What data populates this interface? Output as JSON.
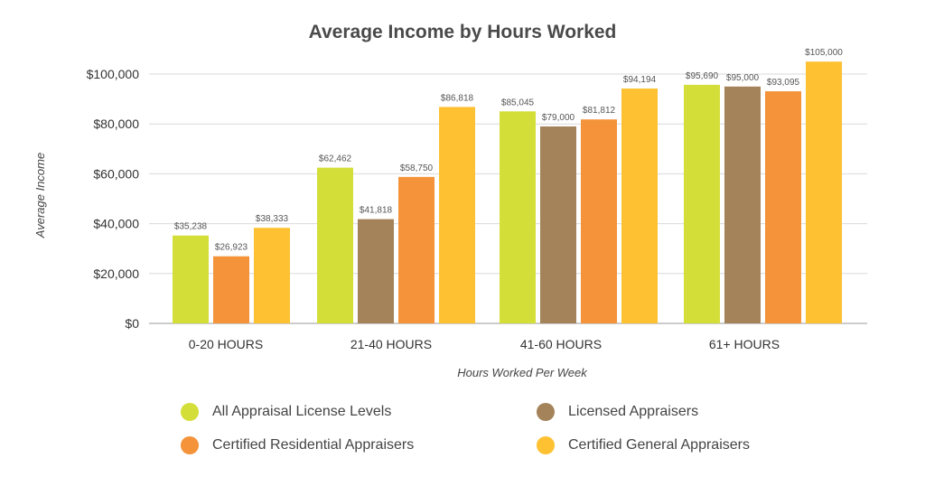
{
  "chart_data": {
    "type": "bar",
    "title": "Average Income by Hours Worked",
    "xlabel": "Hours Worked Per Week",
    "ylabel": "Average Income",
    "ylim": [
      0,
      100000
    ],
    "yticks": [
      0,
      20000,
      40000,
      60000,
      80000,
      100000
    ],
    "ytick_labels": [
      "$0",
      "$20,000",
      "$40,000",
      "$60,000",
      "$80,000",
      "$100,000"
    ],
    "grid": true,
    "legend_position": "bottom",
    "categories": [
      "0-20 HOURS",
      "21-40 HOURS",
      "41-60 HOURS",
      "61+ HOURS"
    ],
    "series": [
      {
        "name": "All Appraisal License Levels",
        "color": "#d4de39",
        "values": [
          35238,
          62462,
          85045,
          95690
        ],
        "labels": [
          "$35,238",
          "$62,462",
          "$85,045",
          "$95,690"
        ]
      },
      {
        "name": "Licensed Appraisers",
        "color": "#a5835a",
        "values": [
          null,
          41818,
          79000,
          95000
        ],
        "labels": [
          null,
          "$41,818",
          "$79,000",
          "$95,000"
        ]
      },
      {
        "name": "Certified Residential Appraisers",
        "color": "#f4933a",
        "values": [
          26923,
          58750,
          81812,
          93095
        ],
        "labels": [
          "$26,923",
          "$58,750",
          "$81,812",
          "$93,095"
        ]
      },
      {
        "name": "Certified General Appraisers",
        "color": "#fdc132",
        "values": [
          38333,
          86818,
          94194,
          105000
        ],
        "labels": [
          "$38,333",
          "$86,818",
          "$94,194",
          "$105,000"
        ]
      }
    ]
  }
}
